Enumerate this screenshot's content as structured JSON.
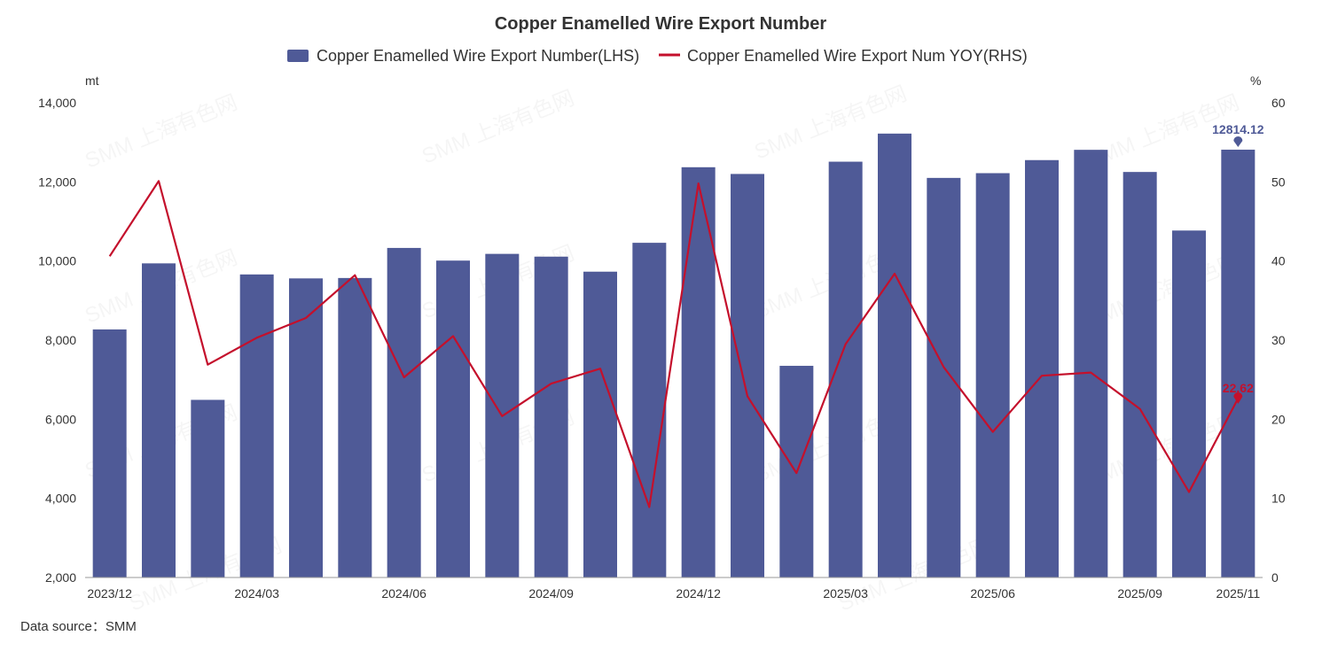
{
  "chart_data": {
    "type": "bar",
    "title": "Copper Enamelled Wire Export Number",
    "source": "Data source：SMM",
    "watermark": "SMM 上海有色网",
    "colors": {
      "bar": "#4f5a97",
      "line": "#c4102c"
    },
    "legend": {
      "position": "top",
      "items": [
        "Copper Enamelled Wire Export Number(LHS)",
        "Copper Enamelled Wire Export Num YOY(RHS)"
      ]
    },
    "y_left": {
      "unit": "mt",
      "min": 2000,
      "max": 14000,
      "ticks": [
        "2,000",
        "4,000",
        "6,000",
        "8,000",
        "10,000",
        "12,000",
        "14,000"
      ]
    },
    "y_right": {
      "unit": "%",
      "min": 0,
      "max": 60,
      "ticks": [
        "0",
        "10",
        "20",
        "30",
        "40",
        "50",
        "60"
      ]
    },
    "categories": [
      "2023/12",
      "2024/01",
      "2024/02",
      "2024/03",
      "2024/04",
      "2024/05",
      "2024/06",
      "2024/07",
      "2024/08",
      "2024/09",
      "2024/10",
      "2024/11",
      "2024/12",
      "2025/01",
      "2025/02",
      "2025/03",
      "2025/04",
      "2025/05",
      "2025/06",
      "2025/07",
      "2025/08",
      "2025/09",
      "2025/10",
      "2025/11"
    ],
    "x_tick_labels": [
      {
        "index": 0,
        "label": "2023/12"
      },
      {
        "index": 3,
        "label": "2024/03"
      },
      {
        "index": 6,
        "label": "2024/06"
      },
      {
        "index": 9,
        "label": "2024/09"
      },
      {
        "index": 12,
        "label": "2024/12"
      },
      {
        "index": 15,
        "label": "2025/03"
      },
      {
        "index": 18,
        "label": "2025/06"
      },
      {
        "index": 21,
        "label": "2025/09"
      },
      {
        "index": 23,
        "label": "2025/11"
      }
    ],
    "series": [
      {
        "name": "Copper Enamelled Wire Export Number(LHS)",
        "type": "bar",
        "axis": "left",
        "values": [
          8270,
          9940,
          6490,
          9660,
          9560,
          9570,
          10330,
          10010,
          10180,
          10110,
          9730,
          10460,
          12370,
          12200,
          7350,
          12510,
          13220,
          12100,
          12220,
          12550,
          12810,
          12250,
          10770,
          12814.12
        ]
      },
      {
        "name": "Copper Enamelled Wire Export Num YOY(RHS)",
        "type": "line",
        "axis": "right",
        "values": [
          40.6,
          50.1,
          26.9,
          30.3,
          32.8,
          38.2,
          25.3,
          30.5,
          20.4,
          24.5,
          26.4,
          8.9,
          49.8,
          22.9,
          13.2,
          29.5,
          38.4,
          26.6,
          18.4,
          25.5,
          25.9,
          21.3,
          10.8,
          22.62
        ]
      }
    ],
    "data_labels": [
      {
        "series": 0,
        "index": 23,
        "label": "12814.12"
      },
      {
        "series": 1,
        "index": 23,
        "label": "22.62"
      }
    ]
  }
}
